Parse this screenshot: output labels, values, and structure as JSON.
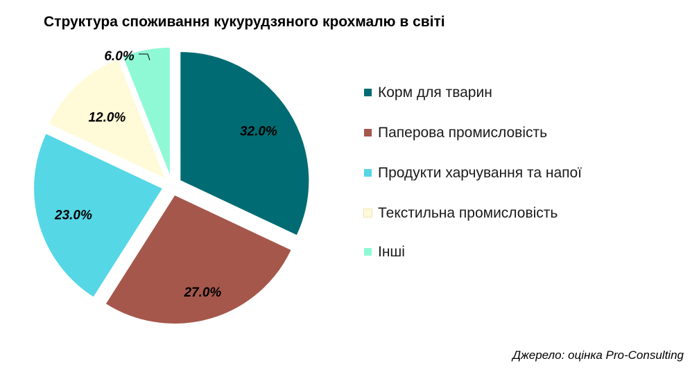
{
  "chart_data": {
    "type": "pie",
    "title": "Структура споживання кукурудзяного крохмалю в світі",
    "slices": [
      {
        "name": "Корм для тварин",
        "value": 32.0,
        "label": "32.0%",
        "color": "#006b72"
      },
      {
        "name": "Паперова промисловість",
        "value": 27.0,
        "label": "27.0%",
        "color": "#a5574b"
      },
      {
        "name": "Продукти харчування та напої",
        "value": 23.0,
        "label": "23.0%",
        "color": "#55d7e6"
      },
      {
        "name": "Текстильна промисловість",
        "value": 12.0,
        "label": "12.0%",
        "color": "#fffad8"
      },
      {
        "name": "Інші",
        "value": 6.0,
        "label": "6.0%",
        "color": "#8ff9d6"
      }
    ],
    "legend_position": "right",
    "exploded": true
  },
  "source_note": "Джерело: оцінка Pro-Consulting"
}
